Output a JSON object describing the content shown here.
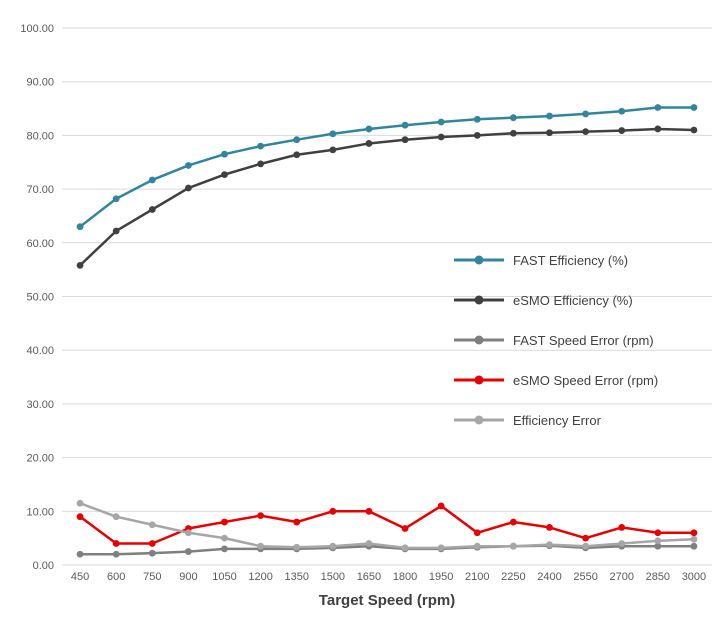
{
  "chart_data": {
    "type": "line",
    "title": "",
    "xlabel": "Target Speed (rpm)",
    "ylabel": "",
    "ylim": [
      0,
      100
    ],
    "y_tick_step": 10,
    "y_tick_format_decimals": 2,
    "grid": true,
    "legend_position": "inside-right",
    "categories": [
      450,
      600,
      750,
      900,
      1050,
      1200,
      1350,
      1500,
      1650,
      1800,
      1950,
      2100,
      2250,
      2400,
      2550,
      2700,
      2850,
      3000
    ],
    "series": [
      {
        "name": "FAST Efficiency (%)",
        "color": "#31859c",
        "values": [
          63.0,
          68.2,
          71.7,
          74.4,
          76.5,
          78.0,
          79.2,
          80.3,
          81.2,
          81.9,
          82.5,
          83.0,
          83.3,
          83.6,
          84.0,
          84.5,
          85.2,
          85.2
        ]
      },
      {
        "name": "eSMO Efficiency (%)",
        "color": "#404040",
        "values": [
          55.8,
          62.2,
          66.2,
          70.2,
          72.7,
          74.7,
          76.4,
          77.3,
          78.5,
          79.2,
          79.7,
          80.0,
          80.4,
          80.5,
          80.7,
          80.9,
          81.2,
          81.0
        ]
      },
      {
        "name": "FAST Speed Error (rpm)",
        "color": "#7f7f7f",
        "values": [
          2.0,
          2.0,
          2.2,
          2.5,
          3.0,
          3.0,
          3.0,
          3.2,
          3.5,
          3.0,
          3.0,
          3.3,
          3.5,
          3.6,
          3.2,
          3.5,
          3.5,
          3.5
        ]
      },
      {
        "name": "eSMO Speed Error (rpm)",
        "color": "#e60000",
        "values": [
          9.0,
          4.0,
          4.0,
          6.8,
          8.0,
          9.2,
          8.0,
          10.0,
          10.0,
          6.8,
          11.0,
          6.0,
          8.0,
          7.0,
          5.0,
          7.0,
          6.0,
          6.0
        ]
      },
      {
        "name": "Efficiency Error",
        "color": "#a6a6a6",
        "values": [
          11.5,
          9.0,
          7.5,
          6.0,
          5.0,
          3.5,
          3.3,
          3.5,
          4.0,
          3.2,
          3.2,
          3.5,
          3.5,
          3.8,
          3.5,
          4.0,
          4.5,
          4.8
        ]
      }
    ]
  }
}
